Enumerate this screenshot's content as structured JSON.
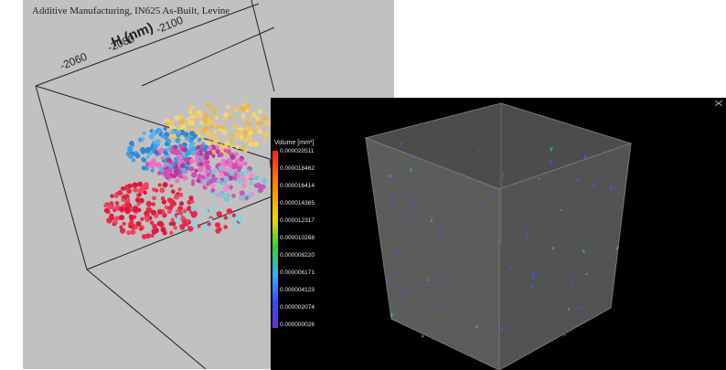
{
  "left_panel": {
    "title": "Additive Manufacturing, IN625 As-Built, Levine",
    "axis_letter": "H (nm)",
    "ticks": [
      "-2060",
      "-2080",
      "-2100"
    ]
  },
  "right_panel": {
    "scale_title": "Volume [mm³]",
    "scale_values": [
      "0.000020511",
      "0.000018462",
      "0.000016414",
      "0.000014365",
      "0.000012317",
      "0.000010268",
      "0.000008220",
      "0.000006171",
      "0.000004123",
      "0.000002074",
      "0.000000026"
    ]
  },
  "colors": {
    "left_background": "#c1c1c1",
    "right_background": "#000000",
    "cube_face": "#5a5a5a"
  }
}
